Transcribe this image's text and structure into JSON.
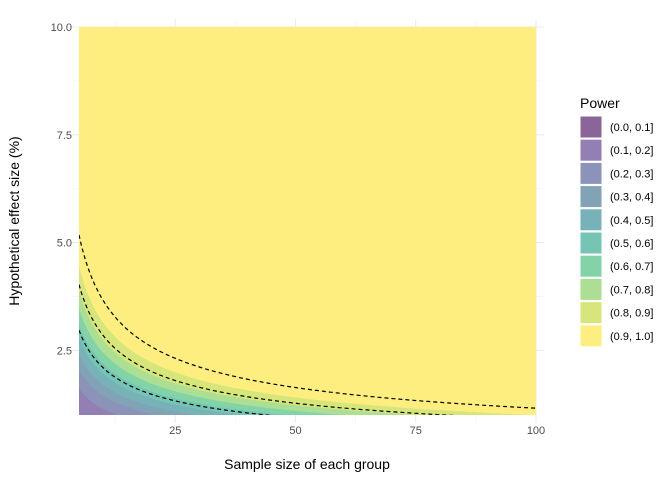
{
  "chart_data": {
    "type": "heatmap",
    "subtype": "filled-contour",
    "title": "",
    "xlabel": "Sample size of each group",
    "ylabel": "Hypothetical effect size (%)",
    "xlim": [
      5,
      100
    ],
    "ylim": [
      1,
      10
    ],
    "x_ticks": [
      25,
      50,
      75,
      100
    ],
    "x_tick_labels": [
      "25",
      "50",
      "75",
      "100"
    ],
    "y_ticks": [
      2.5,
      5.0,
      7.5,
      10.0
    ],
    "y_tick_labels": [
      "2.5",
      "5.0",
      "7.5",
      "10.0"
    ],
    "grid": true,
    "legend": {
      "title": "Power",
      "position": "right",
      "items": [
        {
          "label": "(0.0, 0.1]",
          "lo": 0.0,
          "hi": 0.1,
          "color": "#8c6598"
        },
        {
          "label": "(0.1, 0.2]",
          "lo": 0.1,
          "hi": 0.2,
          "color": "#937fb3"
        },
        {
          "label": "(0.2, 0.3]",
          "lo": 0.2,
          "hi": 0.3,
          "color": "#8b93b9"
        },
        {
          "label": "(0.3, 0.4]",
          "lo": 0.3,
          "hi": 0.4,
          "color": "#82a2b5"
        },
        {
          "label": "(0.4, 0.5]",
          "lo": 0.4,
          "hi": 0.5,
          "color": "#76b2b7"
        },
        {
          "label": "(0.5, 0.6]",
          "lo": 0.5,
          "hi": 0.6,
          "color": "#74c5b3"
        },
        {
          "label": "(0.6, 0.7]",
          "lo": 0.6,
          "hi": 0.7,
          "color": "#83d3a9"
        },
        {
          "label": "(0.7, 0.8]",
          "lo": 0.7,
          "hi": 0.8,
          "color": "#acdf93"
        },
        {
          "label": "(0.8, 0.9]",
          "lo": 0.8,
          "hi": 0.9,
          "color": "#d6e67b"
        },
        {
          "label": "(0.9, 1.0]",
          "lo": 0.9,
          "hi": 1.0,
          "color": "#fdee7f"
        }
      ]
    },
    "contour_bands": [
      {
        "power": 0.0,
        "c": 0
      },
      {
        "power": 0.1,
        "c": 4.8
      },
      {
        "power": 0.2,
        "c": 13.0
      },
      {
        "power": 0.3,
        "c": 21.0
      },
      {
        "power": 0.4,
        "c": 29.0
      },
      {
        "power": 0.5,
        "c": 38.5
      },
      {
        "power": 0.6,
        "c": 48.0
      },
      {
        "power": 0.7,
        "c": 60.0
      },
      {
        "power": 0.8,
        "c": 75.0
      },
      {
        "power": 0.9,
        "c": 99.0
      }
    ],
    "dashed_lines": [
      {
        "name": "",
        "c": 44.0
      },
      {
        "name": "",
        "c": 81.0
      },
      {
        "name": "",
        "c": 134.0
      }
    ]
  }
}
